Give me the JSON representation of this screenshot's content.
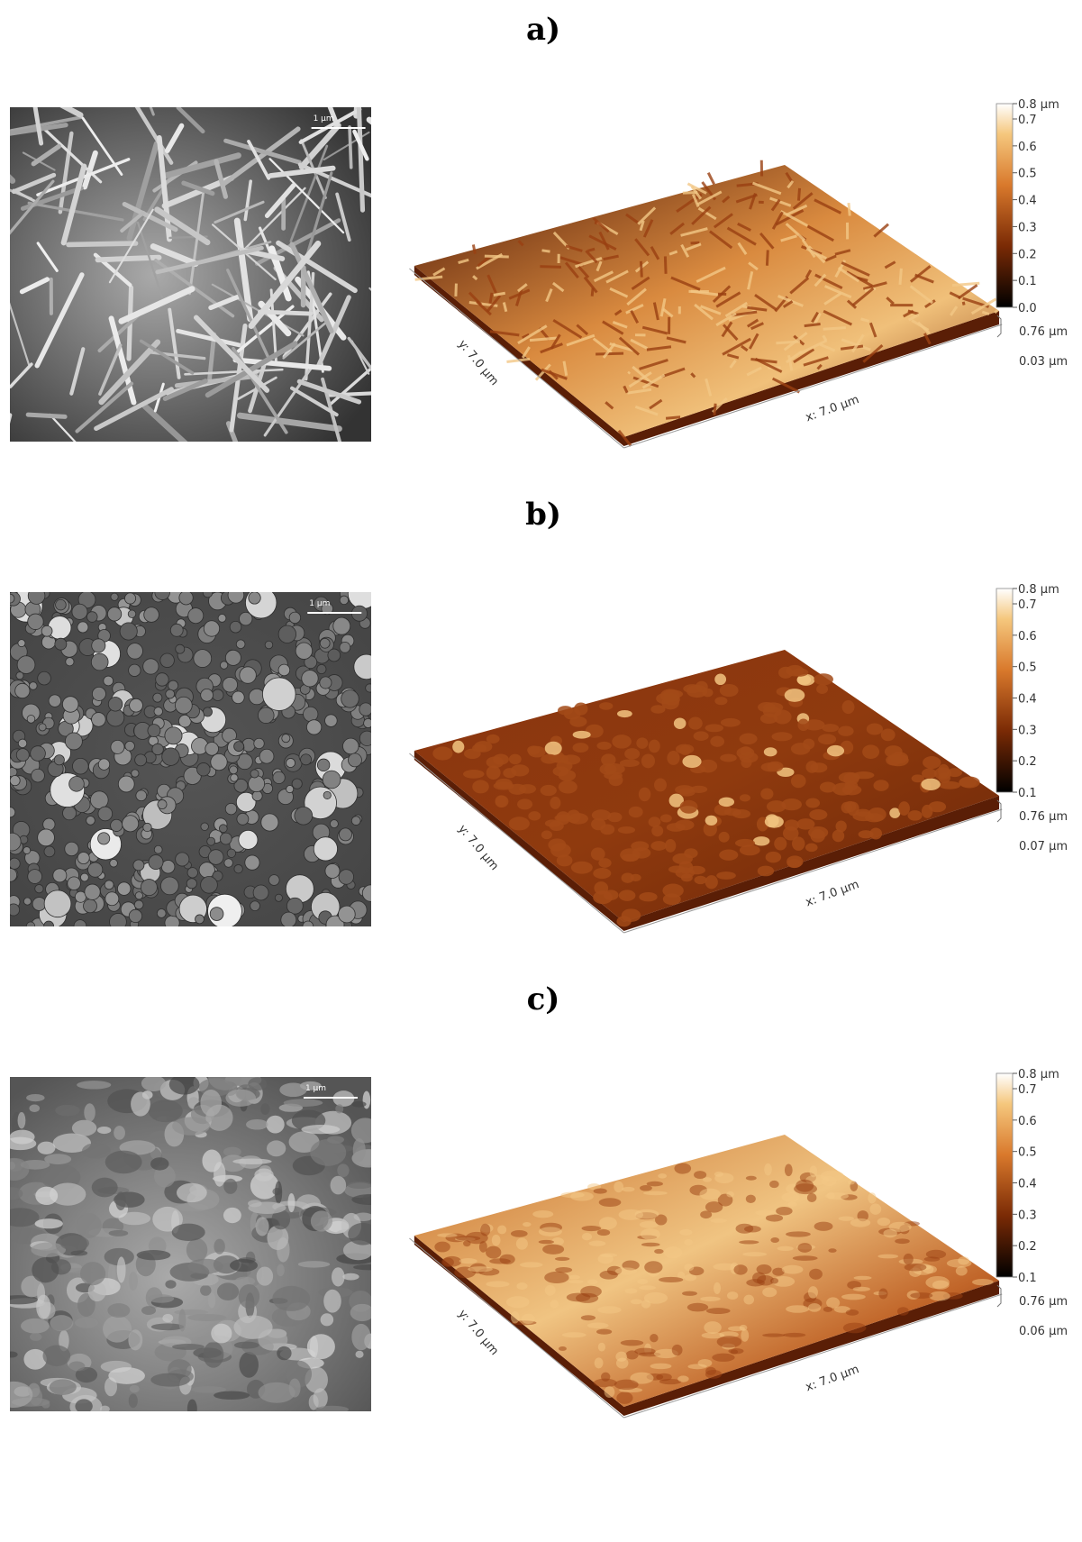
{
  "panels": [
    {
      "label": "a)",
      "sem_scale": "1 µm",
      "colorbar_ticks": [
        "0.8 µm",
        "0.7",
        "0.6",
        "0.5",
        "0.4",
        "0.3",
        "0.2",
        "0.1",
        "0.0"
      ],
      "z_max": "0.76 µm",
      "z_min": "0.03 µm",
      "x_label": "x: 7.0 µm",
      "y_label": "y: 7.0 µm"
    },
    {
      "label": "b)",
      "sem_scale": "1 µm",
      "colorbar_ticks": [
        "0.8 µm",
        "0.7",
        "0.6",
        "0.5",
        "0.4",
        "0.3",
        "0.2",
        "0.1"
      ],
      "z_max": "0.76 µm",
      "z_min": "0.07 µm",
      "x_label": "x: 7.0 µm",
      "y_label": "y: 7.0 µm"
    },
    {
      "label": "c)",
      "sem_scale": "1 µm",
      "colorbar_ticks": [
        "0.8 µm",
        "0.7",
        "0.6",
        "0.5",
        "0.4",
        "0.3",
        "0.2",
        "0.1"
      ],
      "z_max": "0.76 µm",
      "z_min": "0.06 µm",
      "x_label": "x: 7.0 µm",
      "y_label": "y: 7.0 µm"
    }
  ]
}
